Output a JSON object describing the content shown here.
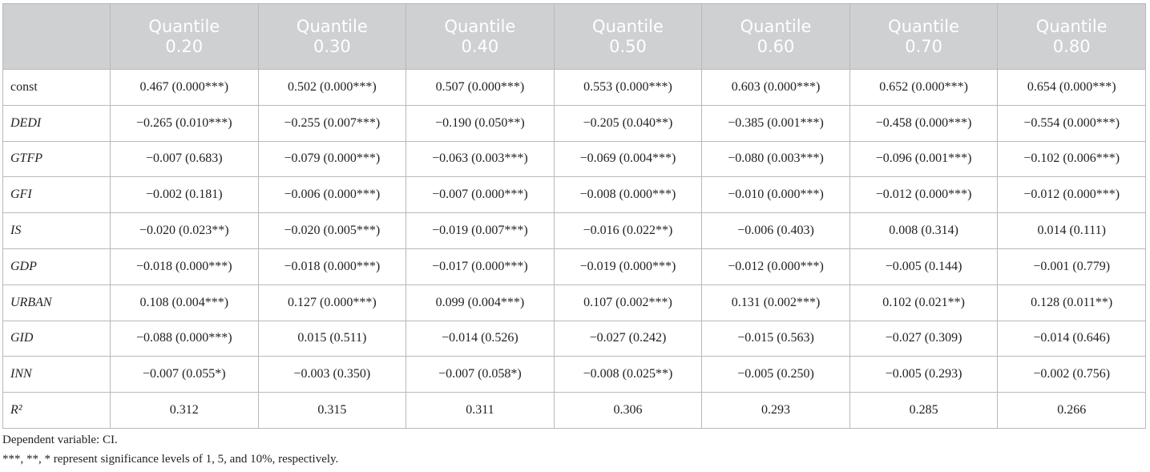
{
  "table": {
    "corner": "",
    "columns": [
      {
        "line1": "Quantile",
        "line2": "0.20"
      },
      {
        "line1": "Quantile",
        "line2": "0.30"
      },
      {
        "line1": "Quantile",
        "line2": "0.40"
      },
      {
        "line1": "Quantile",
        "line2": "0.50"
      },
      {
        "line1": "Quantile",
        "line2": "0.60"
      },
      {
        "line1": "Quantile",
        "line2": "0.70"
      },
      {
        "line1": "Quantile",
        "line2": "0.80"
      }
    ],
    "rows": [
      {
        "label": "const",
        "italic": false,
        "cells": [
          "0.467 (0.000***)",
          "0.502 (0.000***)",
          "0.507 (0.000***)",
          "0.553 (0.000***)",
          "0.603 (0.000***)",
          "0.652 (0.000***)",
          "0.654 (0.000***)"
        ]
      },
      {
        "label": "DEDI",
        "italic": true,
        "cells": [
          "−0.265 (0.010***)",
          "−0.255 (0.007***)",
          "−0.190 (0.050**)",
          "−0.205 (0.040**)",
          "−0.385 (0.001***)",
          "−0.458 (0.000***)",
          "−0.554 (0.000***)"
        ]
      },
      {
        "label": "GTFP",
        "italic": true,
        "cells": [
          "−0.007 (0.683)",
          "−0.079 (0.000***)",
          "−0.063 (0.003***)",
          "−0.069 (0.004***)",
          "−0.080 (0.003***)",
          "−0.096 (0.001***)",
          "−0.102 (0.006***)"
        ]
      },
      {
        "label": "GFI",
        "italic": true,
        "cells": [
          "−0.002 (0.181)",
          "−0.006 (0.000***)",
          "−0.007 (0.000***)",
          "−0.008 (0.000***)",
          "−0.010 (0.000***)",
          "−0.012 (0.000***)",
          "−0.012 (0.000***)"
        ]
      },
      {
        "label": "IS",
        "italic": true,
        "cells": [
          "−0.020 (0.023**)",
          "−0.020 (0.005***)",
          "−0.019 (0.007***)",
          "−0.016 (0.022**)",
          "−0.006 (0.403)",
          "0.008 (0.314)",
          "0.014 (0.111)"
        ]
      },
      {
        "label": "GDP",
        "italic": true,
        "cells": [
          "−0.018 (0.000***)",
          "−0.018 (0.000***)",
          "−0.017 (0.000***)",
          "−0.019 (0.000***)",
          "−0.012 (0.000***)",
          "−0.005 (0.144)",
          "−0.001 (0.779)"
        ]
      },
      {
        "label": "URBAN",
        "italic": true,
        "cells": [
          "0.108 (0.004***)",
          "0.127 (0.000***)",
          "0.099 (0.004***)",
          "0.107 (0.002***)",
          "0.131 (0.002***)",
          "0.102 (0.021**)",
          "0.128 (0.011**)"
        ]
      },
      {
        "label": "GID",
        "italic": true,
        "cells": [
          "−0.088 (0.000***)",
          "0.015 (0.511)",
          "−0.014 (0.526)",
          "−0.027 (0.242)",
          "−0.015 (0.563)",
          "−0.027 (0.309)",
          "−0.014 (0.646)"
        ]
      },
      {
        "label": "INN",
        "italic": true,
        "cells": [
          "−0.007 (0.055*)",
          "−0.003 (0.350)",
          "−0.007 (0.058*)",
          "−0.008 (0.025**)",
          "−0.005 (0.250)",
          "−0.005 (0.293)",
          "−0.002 (0.756)"
        ]
      },
      {
        "label": "R²",
        "italic": true,
        "cells": [
          "0.312",
          "0.315",
          "0.311",
          "0.306",
          "0.293",
          "0.285",
          "0.266"
        ]
      }
    ]
  },
  "notes": [
    "Dependent variable: CI.",
    "***, **, * represent significance levels of 1, 5, and 10%, respectively."
  ],
  "colors": {
    "header_bg": "#cfd0d2",
    "header_text": "#ffffff",
    "grid": "#b9b9b9"
  }
}
